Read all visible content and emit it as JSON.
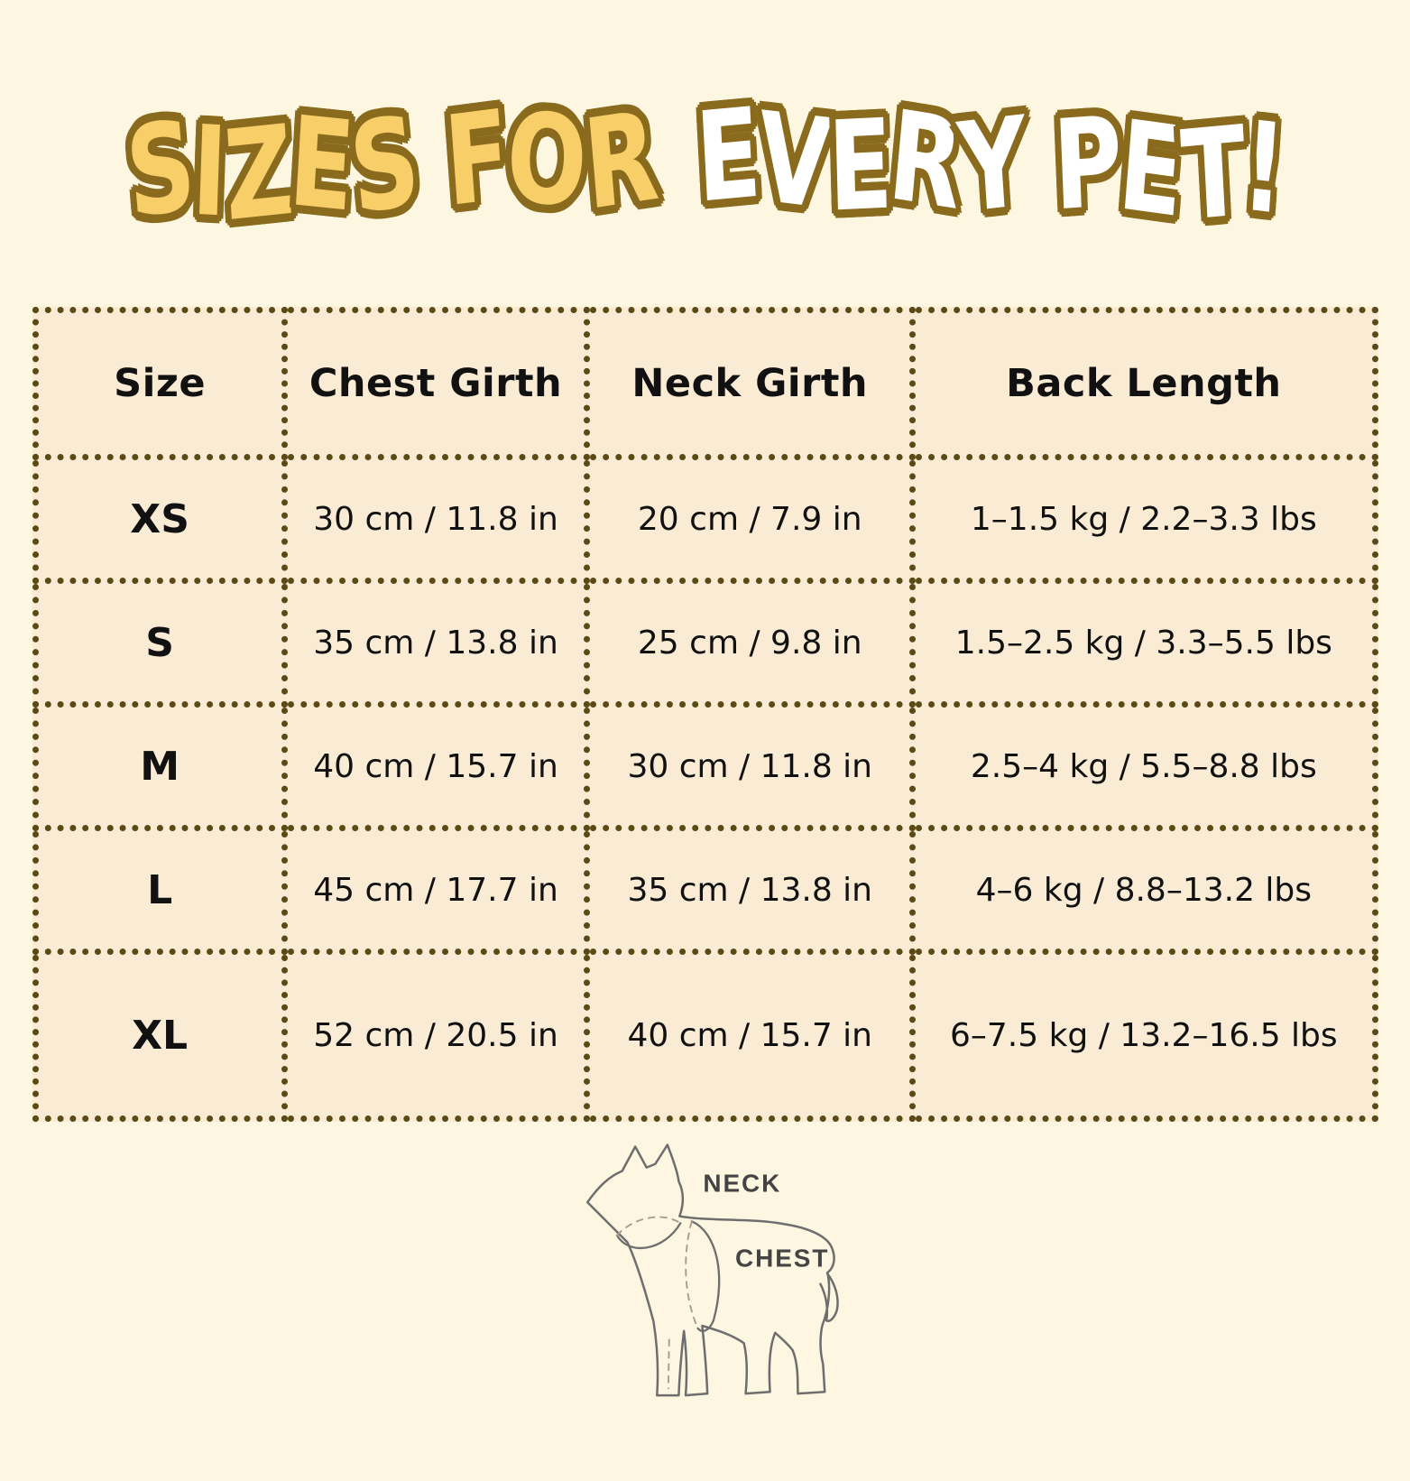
{
  "page": {
    "background": "#FDF7E2"
  },
  "title": {
    "part1": "SIZES FOR",
    "part2": "EVERY PET!",
    "part1_fill": "#F8CE68",
    "part2_fill": "#FFFFFF",
    "outline_color": "#8A6B1E"
  },
  "chart_data": {
    "type": "table",
    "title": "SIZES FOR EVERY PET!",
    "columns": [
      "Size",
      "Chest Girth",
      "Neck Girth",
      "Back Length"
    ],
    "rows": [
      [
        "XS",
        "30 cm / 11.8 in",
        "20 cm / 7.9 in",
        "1–1.5 kg / 2.2–3.3 lbs"
      ],
      [
        "S",
        "35 cm / 13.8 in",
        "25 cm / 9.8 in",
        "1.5–2.5 kg / 3.3–5.5 lbs"
      ],
      [
        "M",
        "40 cm / 15.7 in",
        "30 cm / 11.8 in",
        "2.5–4 kg / 5.5–8.8 lbs"
      ],
      [
        "L",
        "45 cm / 17.7 in",
        "35 cm / 13.8 in",
        "4–6 kg / 8.8–13.2 lbs"
      ],
      [
        "XL",
        "52 cm / 20.5 in",
        "40 cm / 15.7 in",
        "6–7.5 kg / 13.2–16.5 lbs"
      ]
    ],
    "style": {
      "cell_background": "#FAEBD5",
      "border_color": "#5C4A16",
      "border_style": "dotted",
      "text_color": "#111111",
      "grid": true,
      "legend": false
    }
  },
  "diagram": {
    "neck_label": "NECK",
    "chest_label": "CHEST",
    "outline_color": "#6E6E6E"
  }
}
